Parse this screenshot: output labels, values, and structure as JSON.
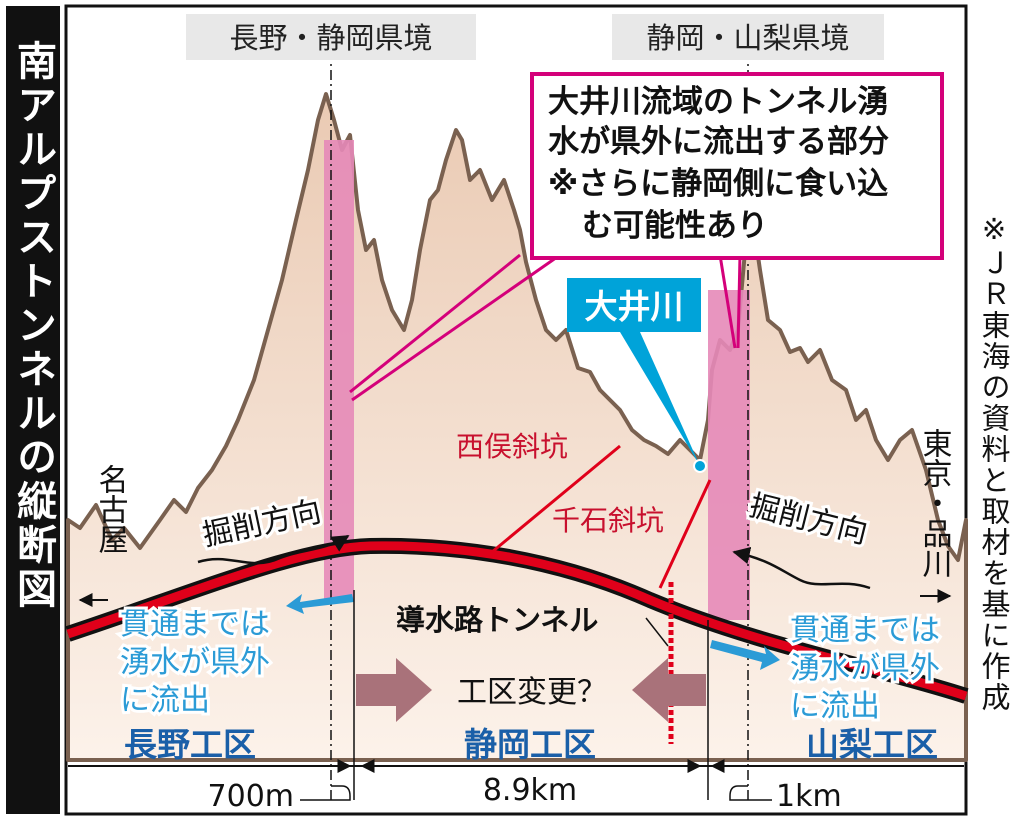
{
  "title": "南アルプストンネルの縦断図",
  "source_note": "※ＪＲ東海の資料と取材を基に作成",
  "boundaries": {
    "nagano_shizuoka": "長野・静岡県境",
    "shizuoka_yamanashi": "静岡・山梨県境"
  },
  "callout": {
    "lines": [
      "大井川流域のトンネル湧",
      "水が県外に流出する部分",
      "※さらに静岡側に食い込",
      "む可能性あり"
    ]
  },
  "river": "大井川",
  "shafts": {
    "nishimata": "西俣斜坑",
    "senngoku": "千石斜坑"
  },
  "conduit": "導水路トンネル",
  "directions": {
    "left_terminus": "名古屋",
    "right_terminus": "東京・品川",
    "excavation_left": "掘削方向",
    "excavation_right": "掘削方向"
  },
  "outflow": {
    "left": [
      "貫通までは",
      "湧水が県外",
      "に流出"
    ],
    "right": [
      "貫通までは",
      "湧水が県外",
      "に流出"
    ]
  },
  "zone_change": "工区変更？",
  "sections": {
    "nagano": "長野工区",
    "shizuoka": "静岡工区",
    "yamanashi": "山梨工区"
  },
  "dimensions": {
    "nagano_overflow": "700m",
    "shizuoka_length": "8.9km",
    "yamanashi_overflow": "1km"
  },
  "colors": {
    "accent_pink": "#d4007a",
    "zone_pink": "#e58ab8",
    "tunnel_red": "#e0001a",
    "river_blue": "#00a3d9",
    "section_blue": "#1a5fa8",
    "outflow_blue": "#2b9bd6",
    "arrow_mauve": "#a9727a",
    "mountain_fill": "#f3dccb",
    "mountain_stroke": "#7a6150"
  }
}
